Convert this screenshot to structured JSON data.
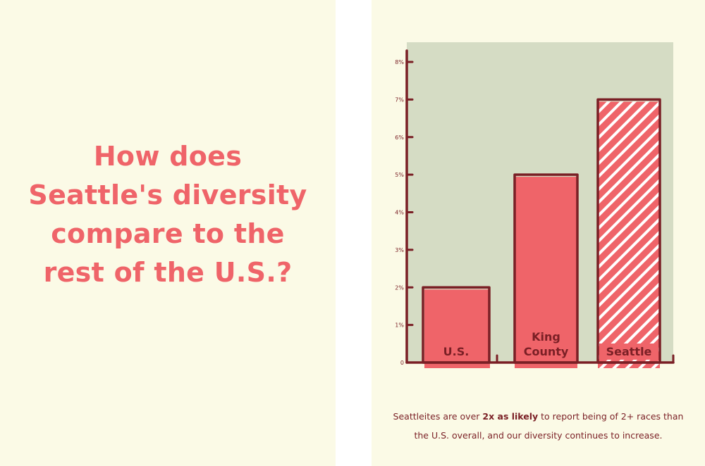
{
  "headline": {
    "lines": [
      "How does",
      "Seattle's diversity",
      "compare to the",
      "rest of the U.S.?"
    ]
  },
  "caption": {
    "line1_before": "Seattleites are over ",
    "line1_bold": "2x as likely",
    "line1_after": " to report being of 2+ races than",
    "line2": "the U.S. overall, and our diversity continues to increase."
  },
  "colors": {
    "background": "#fbfae6",
    "plot_background": "#d5dcc4",
    "bar_fill": "#ef6469",
    "outline": "#7a1f25",
    "headline": "#ef6469",
    "stripe": "#ffffff"
  },
  "chart_data": {
    "type": "bar",
    "categories": [
      "U.S.",
      "King County",
      "Seattle"
    ],
    "category_label_lines": [
      [
        "U.S."
      ],
      [
        "King",
        "County"
      ],
      [
        "Seattle"
      ]
    ],
    "values": [
      2,
      5,
      7
    ],
    "unit": "%",
    "ylim": [
      0,
      8
    ],
    "yticks": [
      0,
      1,
      2,
      3,
      4,
      5,
      6,
      7,
      8
    ],
    "ytick_labels": [
      "0",
      "1%",
      "2%",
      "3%",
      "4%",
      "5%",
      "6%",
      "7%",
      "8%"
    ],
    "bar_styles": [
      "solid",
      "solid",
      "hatched"
    ],
    "grid": false,
    "title": "",
    "xlabel": "",
    "ylabel": ""
  }
}
